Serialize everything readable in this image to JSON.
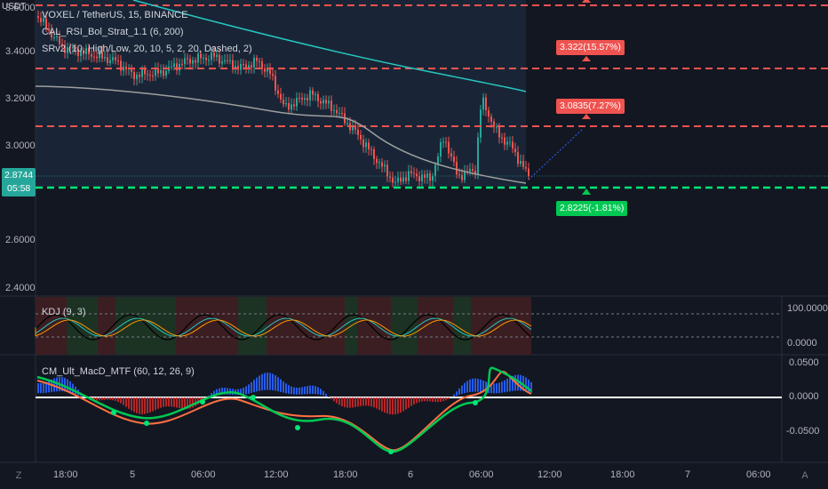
{
  "symbol_info": {
    "title": "VOXEL / TetherUS, 15, BINANCE",
    "indicator1": "CAL_RSI_Bol_Strat_1.1 (6, 200)",
    "indicator2": "SRv2 (10, High/Low, 20, 10, 5, 2, 20, Dashed, 2)"
  },
  "currency": "USDT",
  "price_axis": {
    "ticks": [
      "3.6000",
      "3.4000",
      "3.2000",
      "3.0000",
      "2.6000",
      "2.4000"
    ]
  },
  "current_price": {
    "value": "2.8744",
    "countdown": "05:58"
  },
  "targets": [
    {
      "text": "3.322(15.57%)"
    },
    {
      "text": "3.0835(7.27%)"
    },
    {
      "text": "2.8225(-1.81%)"
    }
  ],
  "kdj": {
    "title": "KDJ (9, 3)",
    "levels": [
      "100.0000",
      "0.0000"
    ]
  },
  "macd": {
    "title": "CM_Ult_MacD_MTF (60, 12, 26, 9)",
    "levels": [
      "0.0500",
      "0.0000",
      "-0.0500"
    ]
  },
  "time_axis": {
    "labels": [
      "18:00",
      "5",
      "06:00",
      "12:00",
      "18:00",
      "6",
      "06:00",
      "12:00",
      "18:00",
      "7",
      "06:00"
    ]
  },
  "controls": {
    "zoom_label": "Z",
    "auto_label": "A"
  },
  "colors": {
    "background": "#131722",
    "bull": "#26a69a",
    "bear": "#ef5350",
    "resistance": "#ef5350",
    "support": "#00e676",
    "teal_line": "#26c6bf",
    "gray_line": "#9e9e9e"
  }
}
